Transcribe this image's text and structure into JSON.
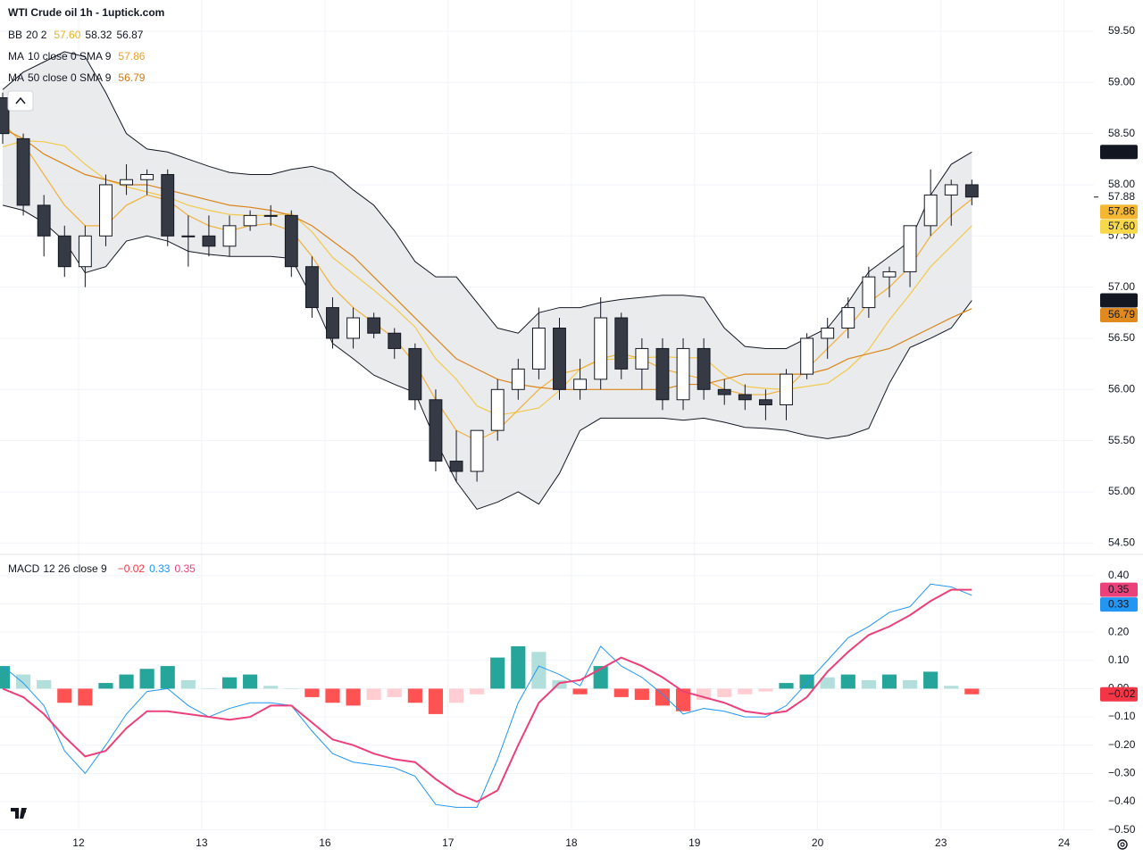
{
  "chart_data": [
    {
      "type": "candlestick",
      "title": "WTI Crude oil  1h - 1uptick.com",
      "xlim": [
        0,
        55.3
      ],
      "xticks": [
        {
          "value": 3.68,
          "label": "12"
        },
        {
          "value": 9.65,
          "label": "13"
        },
        {
          "value": 15.63,
          "label": "16"
        },
        {
          "value": 21.6,
          "label": "17"
        },
        {
          "value": 27.58,
          "label": "18"
        },
        {
          "value": 33.55,
          "label": "19"
        },
        {
          "value": 39.52,
          "label": "20"
        },
        {
          "value": 45.5,
          "label": "23"
        },
        {
          "value": 51.47,
          "label": "24"
        }
      ],
      "ylim": [
        54.398,
        59.805
      ],
      "yticks": [
        {
          "value": 54.5,
          "label": "54.50"
        },
        {
          "value": 55,
          "label": "55.00"
        },
        {
          "value": 55.5,
          "label": "55.50"
        },
        {
          "value": 56,
          "label": "56.00"
        },
        {
          "value": 56.5,
          "label": "56.50"
        },
        {
          "value": 57,
          "label": "57.00"
        },
        {
          "value": 57.5,
          "label": "57.50"
        },
        {
          "value": 58,
          "label": "58.00"
        },
        {
          "value": 58.5,
          "label": "58.50"
        },
        {
          "value": 59,
          "label": "59.00"
        },
        {
          "value": 59.5,
          "label": "59.50"
        }
      ],
      "grid": true,
      "up_color": "#ffffff",
      "down_color": "#363a45",
      "wick_color": "#131722",
      "open": [
        58.85,
        58.45,
        57.8,
        57.5,
        57.2,
        57.5,
        58.0,
        58.05,
        58.1,
        57.5,
        57.5,
        57.4,
        57.6,
        57.7,
        57.7,
        57.2,
        56.8,
        56.5,
        56.7,
        56.55,
        56.4,
        55.9,
        55.3,
        55.2,
        55.6,
        56.0,
        56.2,
        56.6,
        56.0,
        56.1,
        56.7,
        56.2,
        56.4,
        55.9,
        56.4,
        56.0,
        55.95,
        55.9,
        55.85,
        56.15,
        56.5,
        56.6,
        56.8,
        57.1,
        57.15,
        57.6,
        57.9,
        58.0
      ],
      "high": [
        58.9,
        58.5,
        57.9,
        57.6,
        57.6,
        58.1,
        58.2,
        58.15,
        58.15,
        57.7,
        57.7,
        57.7,
        57.75,
        57.8,
        57.75,
        57.3,
        56.9,
        56.8,
        56.75,
        56.6,
        56.45,
        56.0,
        55.6,
        55.6,
        56.1,
        56.3,
        56.8,
        56.7,
        56.3,
        56.9,
        56.75,
        56.5,
        56.5,
        56.5,
        56.5,
        56.1,
        56.05,
        56.0,
        56.2,
        56.55,
        56.7,
        56.9,
        57.2,
        57.2,
        57.6,
        58.15,
        58.05,
        58.05
      ],
      "low": [
        58.4,
        57.7,
        57.3,
        57.1,
        57.0,
        57.4,
        57.9,
        57.9,
        57.4,
        57.2,
        57.3,
        57.3,
        57.55,
        57.6,
        57.1,
        56.7,
        56.4,
        56.4,
        56.5,
        56.3,
        55.8,
        55.2,
        55.1,
        55.1,
        55.5,
        55.9,
        56.1,
        55.9,
        55.9,
        56.0,
        56.1,
        56.0,
        55.8,
        55.8,
        55.9,
        55.85,
        55.8,
        55.7,
        55.7,
        56.1,
        56.3,
        56.5,
        56.7,
        56.9,
        57.0,
        57.5,
        57.6,
        57.8
      ],
      "close": [
        58.5,
        57.8,
        57.5,
        57.2,
        57.5,
        58.0,
        58.05,
        58.1,
        57.5,
        57.5,
        57.4,
        57.6,
        57.7,
        57.7,
        57.2,
        56.8,
        56.5,
        56.7,
        56.55,
        56.4,
        55.9,
        55.3,
        55.2,
        55.6,
        56.0,
        56.2,
        56.6,
        56.0,
        56.1,
        56.7,
        56.2,
        56.4,
        55.9,
        56.4,
        56.0,
        55.95,
        55.9,
        55.85,
        56.15,
        56.5,
        56.6,
        56.8,
        57.1,
        57.15,
        57.6,
        57.9,
        58.0,
        57.88
      ],
      "band": {
        "fill": "#e8e9eb",
        "color": "#131722",
        "upper": [
          58.93,
          59.1,
          59.2,
          59.3,
          59.25,
          58.9,
          58.5,
          58.35,
          58.32,
          58.25,
          58.18,
          58.12,
          58.1,
          58.1,
          58.15,
          58.18,
          58.12,
          57.95,
          57.8,
          57.55,
          57.25,
          57.1,
          57.1,
          56.85,
          56.6,
          56.55,
          56.75,
          56.8,
          56.8,
          56.85,
          56.88,
          56.9,
          56.92,
          56.92,
          56.9,
          56.6,
          56.42,
          56.4,
          56.4,
          56.5,
          56.6,
          56.85,
          57.15,
          57.3,
          57.45,
          57.9,
          58.2,
          58.32
        ],
        "lower": [
          57.8,
          57.75,
          57.63,
          57.45,
          57.14,
          57.2,
          57.45,
          57.5,
          57.45,
          57.35,
          57.32,
          57.3,
          57.3,
          57.3,
          57.28,
          56.9,
          56.45,
          56.3,
          56.14,
          56.05,
          55.97,
          55.5,
          55.1,
          54.83,
          54.9,
          55.0,
          54.88,
          55.18,
          55.6,
          55.72,
          55.72,
          55.72,
          55.72,
          55.7,
          55.72,
          55.68,
          55.63,
          55.62,
          55.6,
          55.55,
          55.52,
          55.55,
          55.62,
          56.06,
          56.41,
          56.5,
          56.6,
          56.87
        ]
      },
      "lines": [
        {
          "color": "#f2c94c",
          "values": [
            58.37,
            58.43,
            58.42,
            58.38,
            58.2,
            58.05,
            57.98,
            57.93,
            57.88,
            57.8,
            57.75,
            57.71,
            57.7,
            57.7,
            57.72,
            57.54,
            57.29,
            57.13,
            56.97,
            56.8,
            56.61,
            56.3,
            56.1,
            55.84,
            55.75,
            55.78,
            55.82,
            55.99,
            56.2,
            56.29,
            56.3,
            56.31,
            56.32,
            56.31,
            56.31,
            56.14,
            56.03,
            56.01,
            56.0,
            56.03,
            56.06,
            56.2,
            56.39,
            56.68,
            56.93,
            57.2,
            57.4,
            57.6
          ]
        },
        {
          "color": "#f0b03c",
          "values": [
            58.6,
            58.4,
            58.1,
            57.8,
            57.6,
            57.6,
            57.8,
            57.9,
            57.85,
            57.7,
            57.6,
            57.55,
            57.6,
            57.62,
            57.55,
            57.3,
            57.0,
            56.8,
            56.65,
            56.5,
            56.25,
            55.9,
            55.6,
            55.5,
            55.6,
            55.8,
            56.0,
            56.15,
            56.2,
            56.3,
            56.35,
            56.3,
            56.2,
            56.15,
            56.1,
            56.0,
            55.95,
            55.95,
            56.0,
            56.2,
            56.4,
            56.6,
            56.85,
            57.0,
            57.2,
            57.5,
            57.7,
            57.86
          ]
        },
        {
          "color": "#d9841a",
          "values": [
            58.55,
            58.45,
            58.3,
            58.2,
            58.1,
            58.05,
            58.0,
            58.0,
            57.95,
            57.9,
            57.85,
            57.8,
            57.78,
            57.75,
            57.7,
            57.6,
            57.45,
            57.3,
            57.1,
            56.9,
            56.7,
            56.5,
            56.3,
            56.2,
            56.1,
            56.05,
            56.02,
            56.0,
            56.0,
            56.0,
            56.0,
            56.0,
            56.0,
            56.05,
            56.05,
            56.1,
            56.15,
            56.15,
            56.15,
            56.15,
            56.2,
            56.3,
            56.35,
            56.4,
            56.5,
            56.6,
            56.7,
            56.79
          ]
        }
      ],
      "legend": [
        {
          "name": "BB",
          "params": "20 2",
          "values": [
            {
              "value": 57.6,
              "label": "57.60",
              "color": "#e6b422"
            },
            {
              "value": 58.32,
              "label": "58.32",
              "color": "#131722"
            },
            {
              "value": 56.87,
              "label": "56.87",
              "color": "#131722"
            }
          ]
        },
        {
          "name": "MA",
          "params": "10 close 0 SMA 9",
          "values": [
            {
              "value": 57.86,
              "label": "57.86",
              "color": "#e8a030"
            }
          ]
        },
        {
          "name": "MA",
          "params": "50 close 0 SMA 9",
          "values": [
            {
              "value": 56.79,
              "label": "56.79",
              "color": "#d07a10"
            }
          ]
        }
      ],
      "last_price": {
        "value": 57.88,
        "label": "57.88"
      },
      "markers": [
        {
          "value": 58.32,
          "label": "58.32",
          "color": "#131722",
          "text_color": "#ffffff"
        },
        {
          "value": 57.86,
          "label": "57.86",
          "color": "#f5b731",
          "text_color": "#131722"
        },
        {
          "value": 57.6,
          "label": "57.60",
          "color": "#f7d84a",
          "text_color": "#131722"
        },
        {
          "value": 56.87,
          "label": "56.87",
          "color": "#131722",
          "text_color": "#ffffff"
        },
        {
          "value": 56.79,
          "label": "56.79",
          "color": "#e08a1e",
          "text_color": "#ffffff"
        }
      ]
    },
    {
      "type": "macd",
      "name": "MACD",
      "params": "12 26 close 9",
      "ylim": [
        -0.501,
        0.472
      ],
      "yticks": [
        {
          "value": -0.5,
          "label": "−0.50"
        },
        {
          "value": -0.4,
          "label": "−0.40"
        },
        {
          "value": -0.3,
          "label": "−0.30"
        },
        {
          "value": -0.2,
          "label": "−0.20"
        },
        {
          "value": -0.1,
          "label": "−0.10"
        },
        {
          "value": 0,
          "label": "0.00"
        },
        {
          "value": 0.1,
          "label": "0.10"
        },
        {
          "value": 0.2,
          "label": "0.20"
        },
        {
          "value": 0.3,
          "label": "0.30"
        },
        {
          "value": 0.4,
          "label": "0.40"
        }
      ],
      "histogram": {
        "colors": [
          "#26a69a",
          "#b2dfdb",
          "#ff5252",
          "#ffcdd2"
        ],
        "values": [
          0.08,
          0.05,
          0.03,
          -0.05,
          -0.06,
          0.02,
          0.05,
          0.07,
          0.08,
          0.03,
          0.0,
          0.04,
          0.05,
          0.01,
          0.0,
          -0.03,
          -0.05,
          -0.06,
          -0.04,
          -0.03,
          -0.05,
          -0.09,
          -0.05,
          -0.02,
          0.11,
          0.15,
          0.13,
          0.03,
          -0.02,
          0.08,
          -0.03,
          -0.04,
          -0.06,
          -0.08,
          -0.04,
          -0.03,
          -0.02,
          -0.01,
          0.02,
          0.05,
          0.04,
          0.05,
          0.03,
          0.05,
          0.03,
          0.06,
          0.01,
          -0.02
        ]
      },
      "macd": {
        "color": "#2196f3",
        "values": [
          0.08,
          0.02,
          -0.06,
          -0.22,
          -0.3,
          -0.2,
          -0.09,
          -0.01,
          0.0,
          -0.06,
          -0.1,
          -0.07,
          -0.05,
          -0.05,
          -0.06,
          -0.15,
          -0.23,
          -0.26,
          -0.27,
          -0.28,
          -0.31,
          -0.41,
          -0.42,
          -0.42,
          -0.25,
          -0.05,
          0.08,
          0.05,
          0.01,
          0.15,
          0.08,
          0.04,
          -0.02,
          -0.09,
          -0.07,
          -0.08,
          -0.1,
          -0.1,
          -0.06,
          0.02,
          0.1,
          0.18,
          0.22,
          0.27,
          0.29,
          0.37,
          0.36,
          0.33
        ]
      },
      "signal": {
        "color": "#ec407a",
        "values": [
          0.0,
          -0.03,
          -0.09,
          -0.17,
          -0.24,
          -0.22,
          -0.14,
          -0.08,
          -0.08,
          -0.09,
          -0.1,
          -0.11,
          -0.1,
          -0.06,
          -0.06,
          -0.12,
          -0.18,
          -0.2,
          -0.23,
          -0.25,
          -0.26,
          -0.32,
          -0.37,
          -0.4,
          -0.36,
          -0.2,
          -0.05,
          0.02,
          0.03,
          0.07,
          0.11,
          0.08,
          0.04,
          -0.01,
          -0.03,
          -0.05,
          -0.08,
          -0.09,
          -0.08,
          -0.03,
          0.06,
          0.13,
          0.19,
          0.22,
          0.26,
          0.31,
          0.35,
          0.35
        ]
      },
      "legend_values": [
        {
          "value": -0.02,
          "label": "−0.02",
          "color": "#f23645"
        },
        {
          "value": 0.33,
          "label": "0.33",
          "color": "#2196f3"
        },
        {
          "value": 0.35,
          "label": "0.35",
          "color": "#ec407a"
        }
      ],
      "markers": [
        {
          "value": 0.35,
          "label": "0.35",
          "color": "#ec407a",
          "text_color": "#ffffff"
        },
        {
          "value": 0.33,
          "label": "0.33",
          "color": "#2196f3",
          "text_color": "#ffffff"
        },
        {
          "value": -0.02,
          "label": "−0.02",
          "color": "#f23645",
          "text_color": "#ffffff"
        }
      ]
    }
  ]
}
